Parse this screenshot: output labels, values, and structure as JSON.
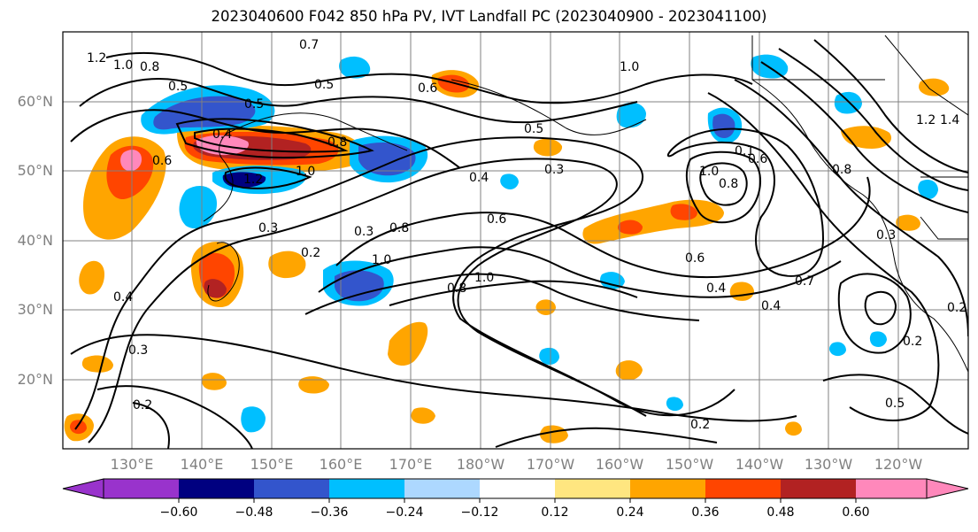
{
  "title": "2023040600 F042 850 hPa PV, IVT Landfall PC (2023040900 - 2023041100)",
  "lat_labels": [
    "60°N",
    "50°N",
    "40°N",
    "30°N",
    "20°N"
  ],
  "lon_labels": [
    "130°E",
    "140°E",
    "150°E",
    "160°E",
    "170°E",
    "180°W",
    "170°W",
    "160°W",
    "150°W",
    "140°W",
    "130°W",
    "120°W"
  ],
  "colorbar": {
    "colors": [
      "#9933cc",
      "#000080",
      "#3355cc",
      "#00bfff",
      "#add8ff",
      "#ffffff",
      "#ffe680",
      "#ffa500",
      "#ff4500",
      "#b22222",
      "#ff88bb"
    ],
    "tick_labels": [
      "−0.60",
      "−0.48",
      "−0.36",
      "−0.24",
      "−0.12",
      "0.12",
      "0.24",
      "0.36",
      "0.48",
      "0.60"
    ]
  },
  "contour_labels": [
    "1.2",
    "1.0",
    "0.8",
    "0.7",
    "0.5",
    "0.6",
    "0.5",
    "0.4",
    "1.2",
    "1.0",
    "0.6",
    "0.8",
    "0.5",
    "0.3",
    "0.4",
    "0.6",
    "0.3",
    "1.0",
    "0.8",
    "0.2",
    "0.3",
    "0.4",
    "0.3",
    "0.2",
    "1.0",
    "0.8",
    "0.6",
    "0.4",
    "0.4",
    "0.7",
    "0.2",
    "1.0",
    "0.8",
    "0.6",
    "0.5",
    "0.2",
    "0.3",
    "0.5",
    "0.2",
    "0.1",
    "1.0",
    "1.2",
    "1.4",
    "0.8"
  ],
  "colors": {
    "grid": "#808080",
    "contour": "#000000",
    "label_gray": "#808080"
  }
}
